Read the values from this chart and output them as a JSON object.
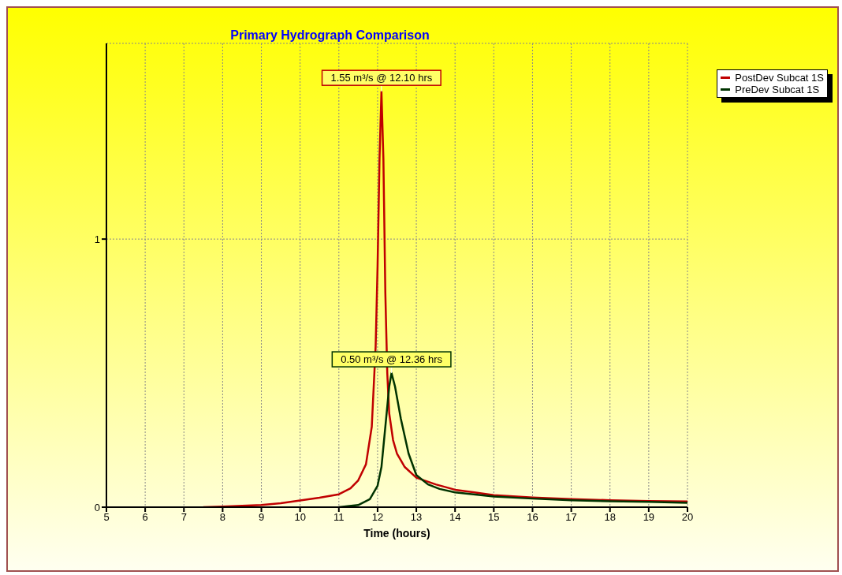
{
  "chart_data": {
    "type": "line",
    "title": "Primary Hydrograph Comparison",
    "xlabel": "Time  (hours)",
    "xlim": [
      5,
      20
    ],
    "xticks": [
      5,
      6,
      7,
      8,
      9,
      10,
      11,
      12,
      13,
      14,
      15,
      16,
      17,
      18,
      19,
      20
    ],
    "ylim": [
      0,
      1.73
    ],
    "yticks": [
      0,
      1
    ],
    "grid": true,
    "legend": "top right",
    "marker": "none",
    "line_style": "solid",
    "series": [
      {
        "name": "PostDev Subcat 1S",
        "color": "#c00000",
        "x": [
          7.5,
          8,
          8.5,
          9,
          9.5,
          10,
          10.5,
          11,
          11.3,
          11.5,
          11.7,
          11.85,
          11.95,
          12.0,
          12.05,
          12.1,
          12.15,
          12.2,
          12.25,
          12.3,
          12.4,
          12.5,
          12.7,
          13.0,
          13.5,
          14,
          14.5,
          15,
          16,
          17,
          18,
          19,
          20
        ],
        "values": [
          0,
          0.002,
          0.005,
          0.008,
          0.015,
          0.025,
          0.035,
          0.048,
          0.07,
          0.1,
          0.16,
          0.3,
          0.6,
          0.9,
          1.3,
          1.55,
          1.3,
          0.8,
          0.5,
          0.35,
          0.25,
          0.2,
          0.15,
          0.11,
          0.085,
          0.065,
          0.055,
          0.045,
          0.036,
          0.03,
          0.026,
          0.023,
          0.021
        ]
      },
      {
        "name": "PreDev Subcat 1S",
        "color": "#003300",
        "x": [
          11,
          11.5,
          11.8,
          12.0,
          12.1,
          12.2,
          12.3,
          12.36,
          12.45,
          12.6,
          12.8,
          13.0,
          13.3,
          13.6,
          14,
          15,
          16,
          17,
          18,
          19,
          20
        ],
        "values": [
          0,
          0.008,
          0.03,
          0.08,
          0.15,
          0.3,
          0.45,
          0.5,
          0.45,
          0.33,
          0.2,
          0.12,
          0.085,
          0.068,
          0.055,
          0.04,
          0.032,
          0.026,
          0.022,
          0.02,
          0.016
        ]
      }
    ],
    "annotations": [
      {
        "text": "1.55 m³/s @ 12.10 hrs",
        "x": 12.1,
        "y": 1.55
      },
      {
        "text": "0.50 m³/s @ 12.36 hrs",
        "x": 12.36,
        "y": 0.5
      }
    ]
  }
}
